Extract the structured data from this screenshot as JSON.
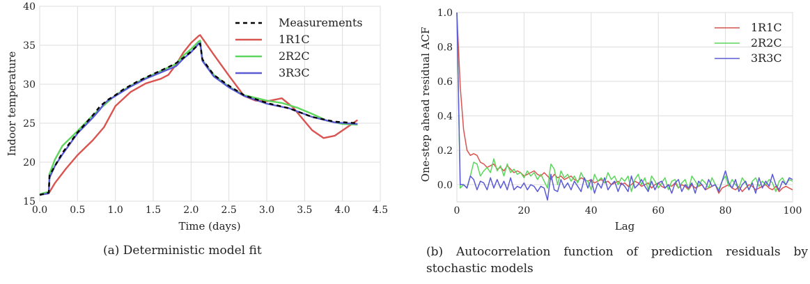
{
  "chart_data": [
    {
      "type": "line",
      "xlabel": "Time (days)",
      "ylabel": "Indoor temperature",
      "xlim": [
        0.0,
        4.5
      ],
      "ylim": [
        15,
        40
      ],
      "xticks": [
        "0.0",
        "0.5",
        "1.0",
        "1.5",
        "2.0",
        "2.5",
        "3.0",
        "3.5",
        "4.0",
        "4.5"
      ],
      "yticks": [
        "15",
        "20",
        "25",
        "30",
        "35",
        "40"
      ],
      "grid": true,
      "legend_position": "top-right",
      "caption": "(a) Deterministic model fit",
      "series": [
        {
          "name": "Measurements",
          "color": "#000000",
          "dashed": true,
          "x": [
            0.0,
            0.12,
            0.13,
            0.3,
            0.5,
            0.7,
            0.8,
            0.85,
            0.9,
            1.0,
            1.1,
            1.3,
            1.5,
            1.7,
            1.8,
            1.9,
            2.0,
            2.1,
            2.12,
            2.15,
            2.3,
            2.5,
            2.7,
            3.0,
            3.3,
            3.6,
            3.9,
            4.2
          ],
          "y": [
            15.8,
            16.1,
            18.3,
            21.2,
            23.8,
            26.0,
            27.2,
            27.6,
            28.0,
            28.6,
            29.3,
            30.4,
            31.3,
            32.2,
            32.7,
            33.4,
            34.2,
            35.1,
            35.2,
            33.2,
            31.2,
            29.8,
            28.6,
            27.6,
            26.9,
            25.8,
            25.2,
            25.0
          ]
        },
        {
          "name": "1R1C",
          "color": "#d9534f",
          "dashed": false,
          "x": [
            0.0,
            0.12,
            0.2,
            0.35,
            0.5,
            0.7,
            0.85,
            1.0,
            1.2,
            1.4,
            1.6,
            1.7,
            1.8,
            1.9,
            2.0,
            2.1,
            2.12,
            2.3,
            2.5,
            2.7,
            2.85,
            3.0,
            3.2,
            3.35,
            3.6,
            3.75,
            3.9,
            4.05,
            4.2
          ],
          "y": [
            15.8,
            16.0,
            17.3,
            19.2,
            20.9,
            22.8,
            24.5,
            27.2,
            29.0,
            30.1,
            30.7,
            31.2,
            32.5,
            34.1,
            35.3,
            36.2,
            36.3,
            33.8,
            31.1,
            28.5,
            27.9,
            27.8,
            28.2,
            27.0,
            24.1,
            23.1,
            23.4,
            24.4,
            25.4
          ]
        },
        {
          "name": "2R2C",
          "color": "#5cd65c",
          "dashed": false,
          "x": [
            0.0,
            0.12,
            0.13,
            0.2,
            0.3,
            0.5,
            0.7,
            0.85,
            1.0,
            1.2,
            1.4,
            1.6,
            1.8,
            1.9,
            2.0,
            2.1,
            2.12,
            2.15,
            2.3,
            2.5,
            2.7,
            3.0,
            3.2,
            3.4,
            3.6,
            3.8,
            4.0,
            4.2
          ],
          "y": [
            15.9,
            16.2,
            18.5,
            20.3,
            22.1,
            24.0,
            26.0,
            27.3,
            28.6,
            29.8,
            30.8,
            31.7,
            32.6,
            33.7,
            34.5,
            35.5,
            35.6,
            33.1,
            31.2,
            29.7,
            28.6,
            27.9,
            27.6,
            27.0,
            26.2,
            25.3,
            24.9,
            24.8
          ]
        },
        {
          "name": "3R3C",
          "color": "#5a5ad6",
          "dashed": false,
          "x": [
            0.0,
            0.12,
            0.13,
            0.2,
            0.3,
            0.5,
            0.7,
            0.8,
            0.85,
            0.9,
            1.0,
            1.2,
            1.4,
            1.6,
            1.8,
            1.9,
            2.0,
            2.1,
            2.12,
            2.15,
            2.3,
            2.5,
            2.7,
            3.0,
            3.3,
            3.6,
            3.9,
            4.2
          ],
          "y": [
            15.8,
            16.0,
            18.0,
            19.5,
            21.0,
            23.7,
            25.7,
            26.8,
            27.5,
            27.9,
            28.5,
            29.7,
            30.7,
            31.5,
            32.3,
            33.3,
            34.1,
            35.2,
            35.3,
            33.0,
            31.0,
            29.6,
            28.5,
            27.5,
            26.9,
            25.8,
            25.1,
            24.9
          ]
        }
      ]
    },
    {
      "type": "line",
      "xlabel": "Lag",
      "ylabel": "One-step ahead residual ACF",
      "xlim": [
        0,
        100
      ],
      "ylim": [
        -0.1,
        1.0
      ],
      "xticks": [
        "0",
        "20",
        "40",
        "60",
        "80",
        "100"
      ],
      "yticks": [
        "0.0",
        "0.2",
        "0.4",
        "0.6",
        "0.8",
        "1.0"
      ],
      "grid": true,
      "legend_position": "top-right",
      "caption": "(b) Autocorrelation function of prediction residuals by stochastic models",
      "series": [
        {
          "name": "1R1C",
          "color": "#d9534f",
          "y": [
            1.0,
            0.57,
            0.32,
            0.2,
            0.17,
            0.18,
            0.17,
            0.13,
            0.12,
            0.1,
            0.11,
            0.12,
            0.09,
            0.1,
            0.08,
            0.11,
            0.09,
            0.07,
            0.08,
            0.07,
            0.05,
            0.06,
            0.07,
            0.08,
            0.06,
            0.05,
            0.07,
            0.05,
            0.03,
            0.06,
            0.04,
            0.05,
            0.03,
            0.04,
            0.05,
            0.03,
            0.02,
            0.04,
            0.03,
            0.02,
            0.03,
            0.01,
            0.02,
            0.03,
            0.01,
            0.02,
            0.0,
            0.01,
            0.02,
            0.0,
            0.01,
            -0.01,
            0.0,
            0.02,
            0.01,
            -0.01,
            0.0,
            0.01,
            -0.02,
            0.0,
            0.01,
            -0.01,
            -0.02,
            0.0,
            -0.01,
            0.01,
            -0.02,
            0.0,
            -0.01,
            -0.03,
            0.0,
            -0.02,
            -0.01,
            0.0,
            -0.03,
            -0.02,
            -0.01,
            0.0,
            -0.05,
            -0.02,
            -0.01,
            0.0,
            -0.02,
            -0.03,
            -0.01,
            -0.04,
            -0.02,
            0.0,
            -0.01,
            -0.03,
            -0.02,
            -0.01,
            0.0,
            -0.02,
            -0.03,
            -0.01,
            -0.04,
            -0.02,
            -0.01,
            -0.02,
            -0.03
          ]
        },
        {
          "name": "2R2C",
          "color": "#5cd65c",
          "y": [
            1.0,
            -0.02,
            0.0,
            -0.02,
            0.05,
            0.13,
            0.12,
            0.05,
            0.08,
            0.1,
            0.07,
            0.15,
            0.08,
            0.11,
            0.05,
            0.12,
            0.07,
            0.09,
            0.06,
            0.07,
            0.04,
            0.08,
            0.05,
            0.07,
            0.03,
            0.06,
            0.02,
            -0.02,
            0.12,
            0.09,
            0.0,
            0.08,
            0.04,
            0.06,
            0.02,
            0.05,
            0.01,
            0.07,
            0.03,
            0.02,
            -0.03,
            0.06,
            0.02,
            0.04,
            0.01,
            0.07,
            0.03,
            0.05,
            0.0,
            0.04,
            0.02,
            0.05,
            -0.04,
            0.03,
            0.06,
            0.0,
            0.04,
            -0.03,
            0.05,
            0.02,
            -0.02,
            0.01,
            0.04,
            -0.03,
            0.02,
            0.03,
            -0.02,
            0.01,
            0.03,
            -0.03,
            0.05,
            0.02,
            -0.01,
            0.03,
            0.01,
            -0.02,
            0.04,
            0.0,
            -0.03,
            0.02,
            0.05,
            -0.01,
            0.03,
            0.0,
            -0.02,
            0.04,
            0.01,
            -0.03,
            0.02,
            0.04,
            -0.01,
            0.02,
            0.0,
            0.03,
            0.01,
            -0.04,
            0.02,
            0.04,
            0.0,
            0.03,
            0.02
          ]
        },
        {
          "name": "3R3C",
          "color": "#5a5ad6",
          "y": [
            1.0,
            0.0,
            0.0,
            -0.02,
            0.05,
            0.03,
            -0.03,
            0.02,
            0.01,
            -0.03,
            0.04,
            -0.02,
            0.03,
            -0.02,
            0.02,
            -0.03,
            0.04,
            -0.03,
            -0.01,
            -0.02,
            0.01,
            -0.03,
            0.0,
            -0.01,
            -0.04,
            -0.01,
            -0.02,
            -0.09,
            0.06,
            -0.03,
            -0.04,
            0.03,
            -0.02,
            0.01,
            -0.03,
            0.02,
            -0.01,
            -0.04,
            0.04,
            -0.02,
            0.03,
            -0.05,
            0.01,
            -0.02,
            0.04,
            -0.03,
            0.0,
            0.02,
            -0.04,
            0.01,
            -0.01,
            -0.04,
            0.05,
            -0.02,
            0.0,
            0.03,
            -0.01,
            -0.04,
            0.02,
            -0.03,
            0.01,
            0.02,
            -0.02,
            0.0,
            -0.05,
            0.01,
            0.03,
            -0.04,
            0.0,
            -0.02,
            0.01,
            -0.05,
            0.02,
            0.0,
            -0.03,
            0.03,
            -0.01,
            0.0,
            -0.04,
            0.02,
            0.08,
            0.01,
            -0.02,
            0.03,
            -0.04,
            0.0,
            0.02,
            -0.03,
            0.01,
            -0.05,
            0.04,
            -0.02,
            0.02,
            -0.01,
            0.06,
            0.0,
            -0.03,
            0.02,
            0.0,
            0.04,
            0.03
          ]
        }
      ]
    }
  ]
}
